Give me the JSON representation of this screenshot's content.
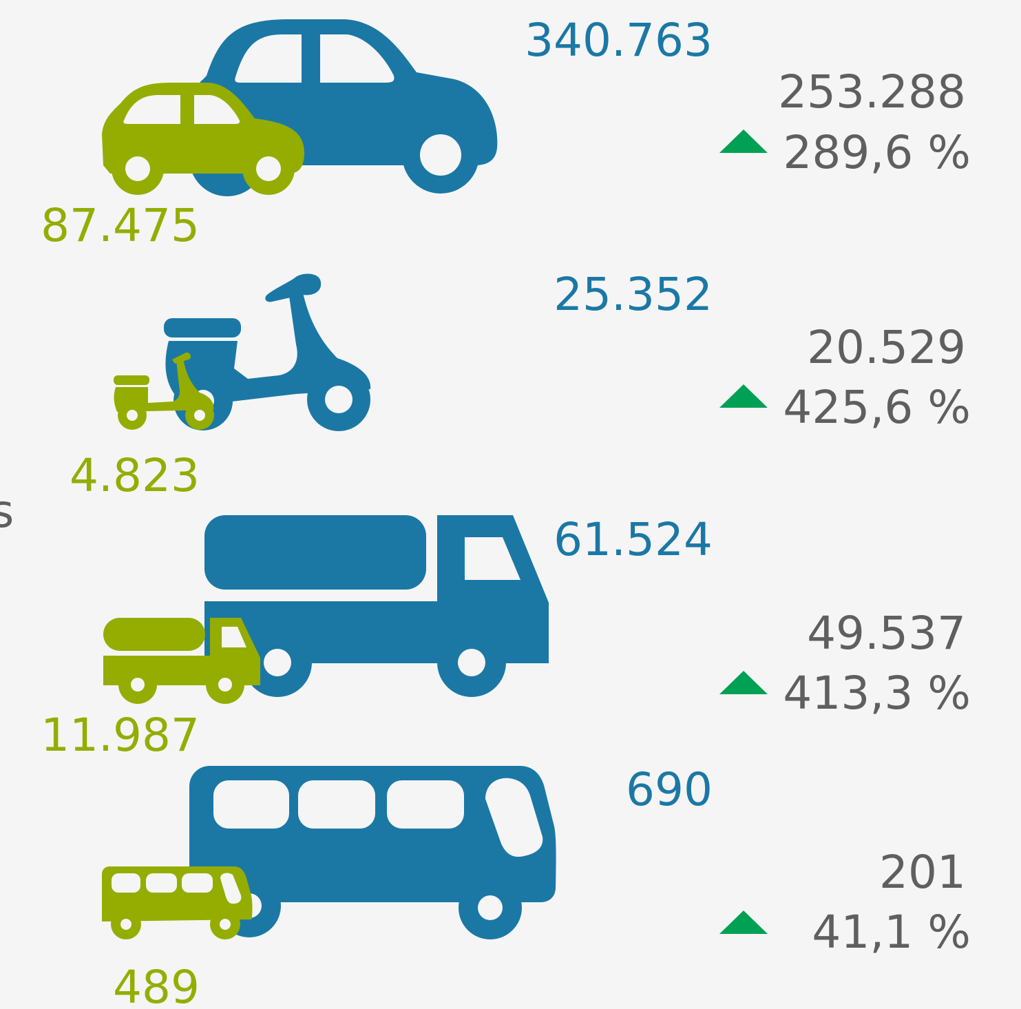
{
  "side_label": "s",
  "rows": [
    {
      "blue_value": "340.763",
      "green_value": "87.475",
      "change": "253.288",
      "percent": "289,6 %"
    },
    {
      "blue_value": "25.352",
      "green_value": "4.823",
      "change": "20.529",
      "percent": "425,6 %"
    },
    {
      "blue_value": "61.524",
      "green_value": "11.987",
      "change": "49.537",
      "percent": "413,3 %"
    },
    {
      "blue_value": "690",
      "green_value": "489",
      "change": "201",
      "percent": "41,1 %"
    }
  ]
}
